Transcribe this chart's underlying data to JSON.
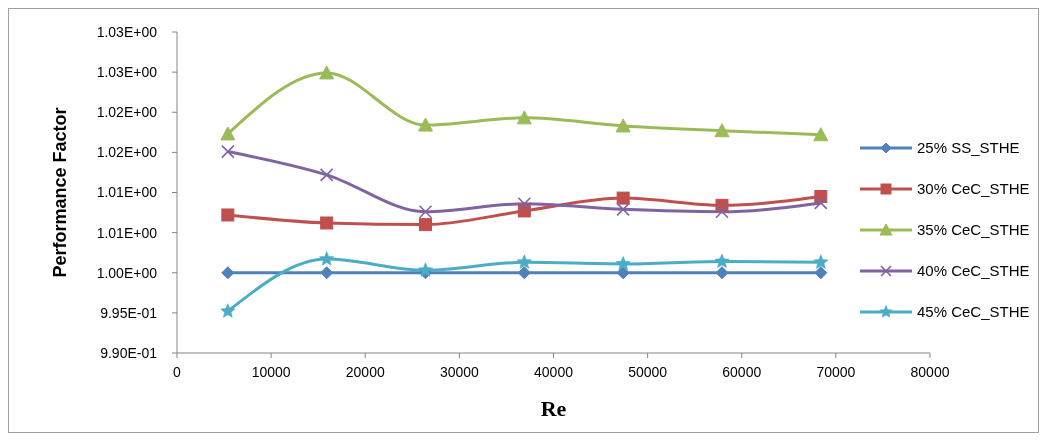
{
  "chart_data": {
    "type": "line",
    "xlabel": "Re",
    "ylabel": "Performance Factor",
    "x": [
      5400,
      15900,
      26400,
      36900,
      47400,
      57900,
      68400
    ],
    "series": [
      {
        "name": "25% SS_STHE",
        "color": "#4f81bd",
        "marker": "diamond",
        "values": [
          1.0,
          1.0,
          1.0,
          1.0,
          1.0,
          1.0,
          1.0
        ]
      },
      {
        "name": "30% CeC_STHE",
        "color": "#c0504d",
        "marker": "square",
        "values": [
          1.0072,
          1.0062,
          1.006,
          1.0077,
          1.0093,
          1.0084,
          1.0095
        ]
      },
      {
        "name": "35% CeC_STHE",
        "color": "#9bbb59",
        "marker": "triangle",
        "values": [
          1.0173,
          1.0249,
          1.0184,
          1.0193,
          1.0183,
          1.0177,
          1.0172
        ]
      },
      {
        "name": "40% CeC_STHE",
        "color": "#8064a2",
        "marker": "cross",
        "values": [
          1.0151,
          1.0122,
          1.0076,
          1.0086,
          1.0079,
          1.0076,
          1.0087
        ]
      },
      {
        "name": "45% CeC_STHE",
        "color": "#4bacc6",
        "marker": "star",
        "values": [
          0.9952,
          1.0017,
          1.0003,
          1.0013,
          1.0011,
          1.0014,
          1.0013
        ]
      }
    ],
    "xlim": [
      0,
      80000
    ],
    "xticks": [
      0,
      10000,
      20000,
      30000,
      40000,
      50000,
      60000,
      70000,
      80000
    ],
    "ylim": [
      0.99,
      1.03
    ],
    "yticks": [
      {
        "value": 0.99,
        "label": "9.90E-01"
      },
      {
        "value": 0.995,
        "label": "9.95E-01"
      },
      {
        "value": 1.0,
        "label": "1.00E+00"
      },
      {
        "value": 1.005,
        "label": "1.01E+00"
      },
      {
        "value": 1.01,
        "label": "1.01E+00"
      },
      {
        "value": 1.015,
        "label": "1.02E+00"
      },
      {
        "value": 1.02,
        "label": "1.02E+00"
      },
      {
        "value": 1.025,
        "label": "1.03E+00"
      },
      {
        "value": 1.03,
        "label": "1.03E+00"
      }
    ],
    "legend": "right"
  }
}
